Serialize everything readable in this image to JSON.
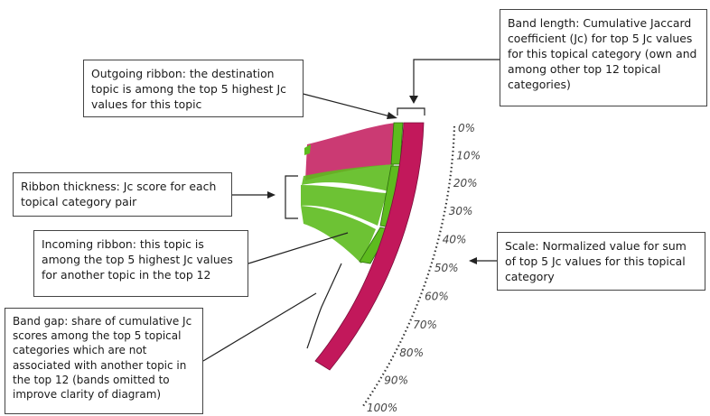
{
  "colors": {
    "outgoing_ribbon": "#c2185b",
    "incoming_ribbon": "#5dbb1e",
    "band": "#c2185b",
    "dark_green": "#2e6b0f"
  },
  "callouts": {
    "band_length": "Band length: Cumulative Jaccard coefficient (Jc) for top 5 Jc values for this topical category (own and among other top 12 topical categories)",
    "outgoing_ribbon": "Outgoing ribbon: the destination topic is among the top 5 highest Jc values for this topic",
    "ribbon_thickness": "Ribbon thickness: Jc score for each topical category pair",
    "incoming_ribbon": "Incoming ribbon: this topic is among the top 5 highest Jc values for another topic in the top 12",
    "scale": "Scale: Normalized value for sum of top 5 Jc values for this topical category",
    "band_gap": "Band gap: share of cumulative Jc scores among the top 5 topical categories which are not associated with another topic in the top 12 (bands omitted to improve clarity of diagram)"
  },
  "scale_ticks": [
    "0%",
    "10%",
    "20%",
    "30%",
    "40%",
    "50%",
    "60%",
    "70%",
    "80%",
    "90%",
    "100%"
  ]
}
